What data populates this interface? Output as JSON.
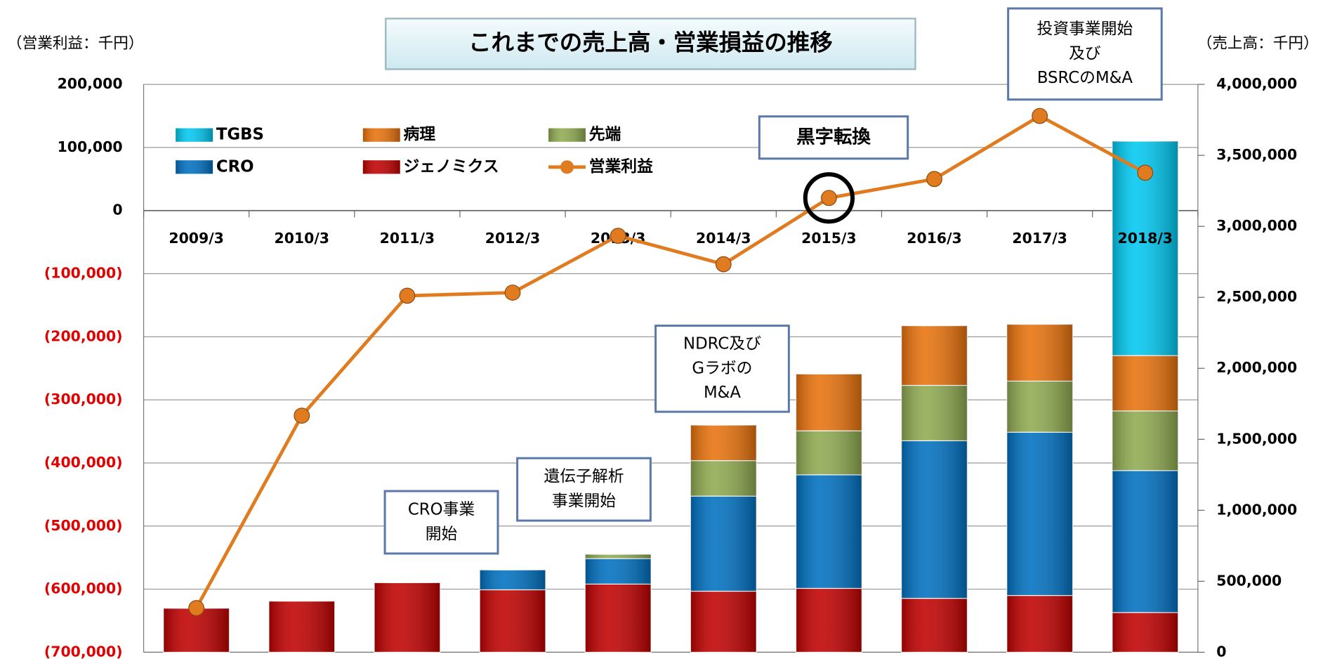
{
  "chart_data": {
    "type": "bar",
    "title": "これまでの売上高・営業損益の推移",
    "y_axis_label": "（営業利益：千円）",
    "y2_axis_label": "（売上高：千円）",
    "categories": [
      "2009/3",
      "2010/3",
      "2011/3",
      "2012/3",
      "2013/3",
      "2014/3",
      "2015/3",
      "2016/3",
      "2017/3",
      "2018/3"
    ],
    "series": [
      {
        "name": "ジェノミクス",
        "color": "#c00000",
        "axis": "y2",
        "type": "bar",
        "values": [
          310000,
          360000,
          490000,
          440000,
          480000,
          430000,
          450000,
          380000,
          400000,
          280000
        ]
      },
      {
        "name": "CRO",
        "color": "#0070c0",
        "axis": "y2",
        "type": "bar",
        "values": [
          null,
          null,
          null,
          140000,
          180000,
          670000,
          800000,
          1110000,
          1150000,
          1000000
        ]
      },
      {
        "name": "先端",
        "color": "#8faa50",
        "axis": "y2",
        "type": "bar",
        "values": [
          null,
          null,
          null,
          null,
          30000,
          250000,
          310000,
          390000,
          360000,
          420000
        ]
      },
      {
        "name": "病理",
        "color": "#e8720c",
        "axis": "y2",
        "type": "bar",
        "values": [
          null,
          null,
          null,
          null,
          null,
          250000,
          400000,
          420000,
          400000,
          390000
        ]
      },
      {
        "name": "TGBS",
        "color": "#00c8f0",
        "axis": "y2",
        "type": "bar",
        "values": [
          null,
          null,
          null,
          null,
          null,
          null,
          null,
          null,
          null,
          1510000
        ]
      },
      {
        "name": "営業利益",
        "color": "#e07b20",
        "axis": "y",
        "type": "line",
        "values": [
          -630000,
          -325000,
          -135000,
          -130000,
          -40000,
          -85000,
          20000,
          50000,
          150000,
          60000
        ]
      }
    ],
    "ylim": [
      -700000,
      200000
    ],
    "yticks": [
      {
        "value": 200000,
        "label": "200,000"
      },
      {
        "value": 100000,
        "label": "100,000"
      },
      0,
      {
        "value": -100000,
        "label": "(100,000)"
      },
      {
        "value": -200000,
        "label": "(200,000)"
      },
      {
        "value": -300000,
        "label": "(300,000)"
      },
      {
        "value": -400000,
        "label": "(400,000)"
      },
      {
        "value": -500000,
        "label": "(500,000)"
      },
      {
        "value": -600000,
        "label": "(600,000)"
      },
      {
        "value": -700000,
        "label": "(700,000)"
      }
    ],
    "y2lim": [
      0,
      4000000
    ],
    "y2ticks": [
      0,
      {
        "value": 500000,
        "label": "500,000"
      },
      {
        "value": 1000000,
        "label": "1,000,000"
      },
      {
        "value": 1500000,
        "label": "1,500,000"
      },
      {
        "value": 2000000,
        "label": "2,000,000"
      },
      {
        "value": 2500000,
        "label": "2,500,000"
      },
      {
        "value": 3000000,
        "label": "3,000,000"
      },
      {
        "value": 3500000,
        "label": "3,500,000"
      },
      {
        "value": 4000000,
        "label": "4,000,000"
      }
    ],
    "grid": true,
    "annotations": [
      {
        "lines": [
          "黒字転換"
        ]
      },
      {
        "lines": [
          "投資事業開始",
          "及び",
          "BSRCのM&A"
        ]
      },
      {
        "lines": [
          "NDRC及び",
          "Gラボの",
          "M&A"
        ]
      },
      {
        "lines": [
          "遺伝子解析",
          "事業開始"
        ]
      },
      {
        "lines": [
          "CRO事業",
          "開始"
        ]
      }
    ]
  }
}
